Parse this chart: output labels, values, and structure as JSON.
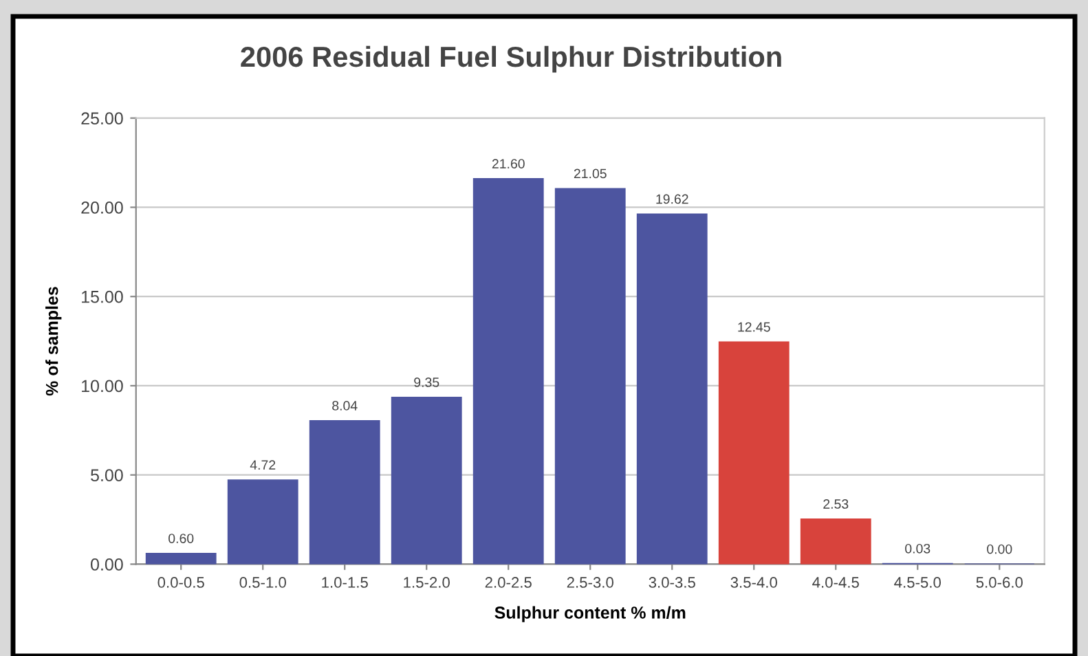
{
  "chart_data": {
    "type": "bar",
    "title": "2006 Residual Fuel Sulphur Distribution",
    "xlabel": "Sulphur content % m/m",
    "ylabel": "% of samples",
    "categories": [
      "0.0-0.5",
      "0.5-1.0",
      "1.0-1.5",
      "1.5-2.0",
      "2.0-2.5",
      "2.5-3.0",
      "3.0-3.5",
      "3.5-4.0",
      "4.0-4.5",
      "4.5-5.0",
      "5.0-6.0"
    ],
    "values": [
      0.6,
      4.72,
      8.04,
      9.35,
      21.6,
      21.05,
      19.62,
      12.45,
      2.53,
      0.03,
      0.0
    ],
    "colors": [
      "#4d55a0",
      "#4d55a0",
      "#4d55a0",
      "#4d55a0",
      "#4d55a0",
      "#4d55a0",
      "#4d55a0",
      "#d8433c",
      "#d8433c",
      "#4d55a0",
      "#4d55a0"
    ],
    "value_labels": [
      "0.60",
      "4.72",
      "8.04",
      "9.35",
      "21.60",
      "21.05",
      "19.62",
      "12.45",
      "2.53",
      "0.03",
      "0.00"
    ],
    "ylim": [
      0,
      25
    ],
    "yticks": [
      {
        "value": 0,
        "label": "0.00"
      },
      {
        "value": 5,
        "label": "5.00"
      },
      {
        "value": 10,
        "label": "10.00"
      },
      {
        "value": 15,
        "label": "15.00"
      },
      {
        "value": 20,
        "label": "20.00"
      },
      {
        "value": 25,
        "label": "25.00"
      }
    ],
    "grid": "y"
  }
}
